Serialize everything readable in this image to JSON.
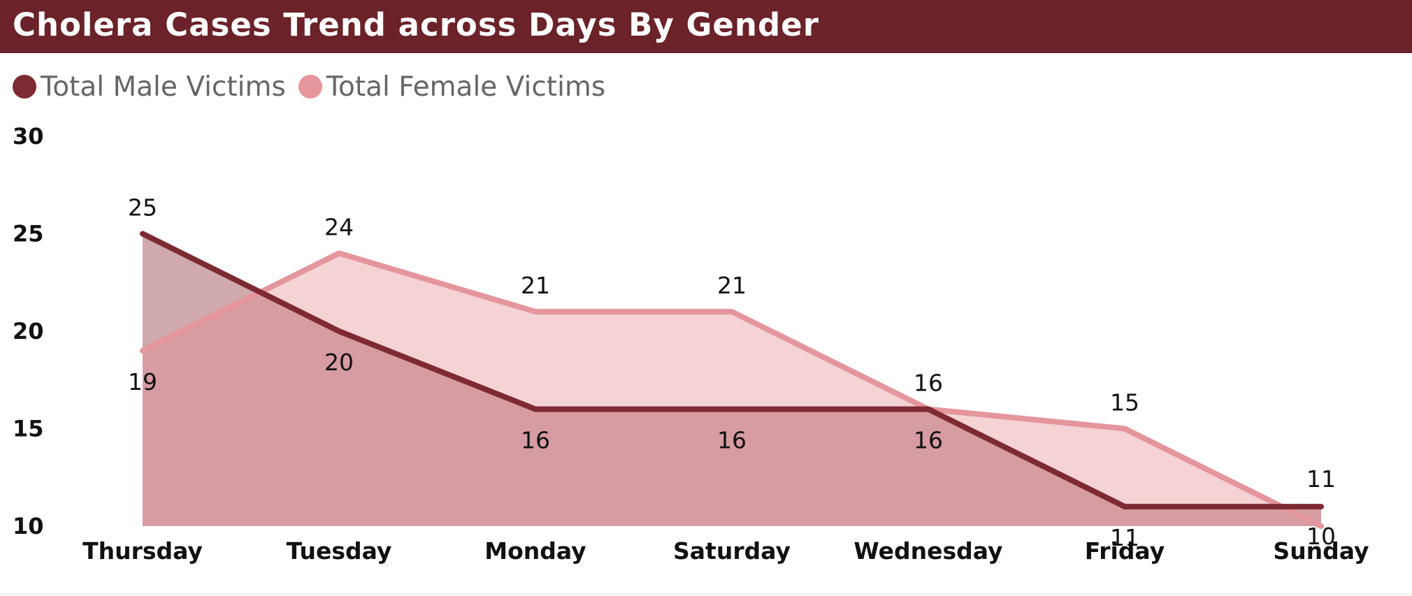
{
  "title": "Cholera Cases Trend across Days By Gender",
  "legend": {
    "male_label": "Total Male Victims",
    "female_label": "Total Female Victims"
  },
  "colors": {
    "title_bar": "#6b2229",
    "male_line": "#7e2a33",
    "male_fill": "#d69ca2",
    "female_line": "#e5959c",
    "female_fill": "#f5d2d4",
    "overlap_fill": "#cfa9ab"
  },
  "chart_data": {
    "type": "area",
    "title": "Cholera Cases Trend across Days By Gender",
    "xlabel": "",
    "ylabel": "",
    "categories": [
      "Thursday",
      "Tuesday",
      "Monday",
      "Saturday",
      "Wednesday",
      "Friday",
      "Sunday"
    ],
    "series": [
      {
        "name": "Total Male Victims",
        "values": [
          25,
          20,
          16,
          16,
          16,
          11,
          11
        ]
      },
      {
        "name": "Total Female Victims",
        "values": [
          19,
          24,
          21,
          21,
          16,
          15,
          10
        ]
      }
    ],
    "ylim": [
      10,
      30
    ],
    "yticks": [
      10,
      15,
      20,
      25,
      30
    ],
    "legend": "top-left",
    "grid": false,
    "data_labels": true
  }
}
